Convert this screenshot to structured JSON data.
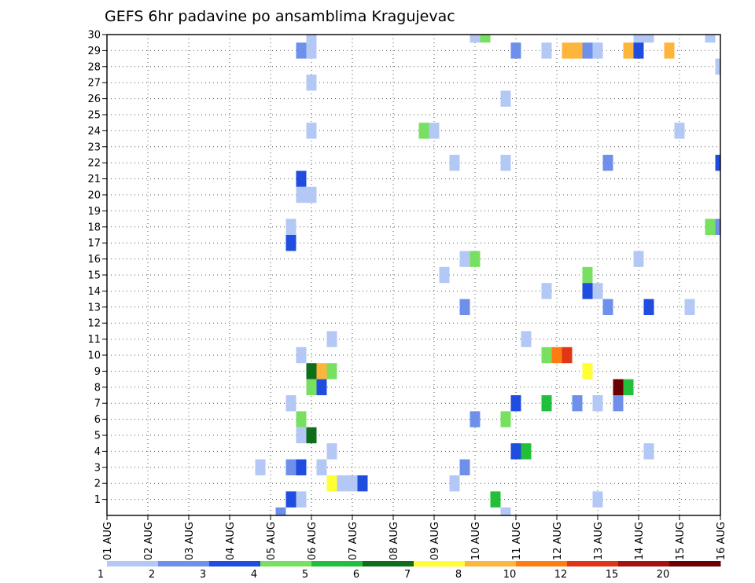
{
  "chart_data": {
    "type": "heatmap",
    "title": "GEFS 6hr padavine po ansamblima Kragujevac",
    "x_tick_labels": [
      "01 AUG",
      "02 AUG",
      "03 AUG",
      "04 AUG",
      "05 AUG",
      "06 AUG",
      "07 AUG",
      "08 AUG",
      "09 AUG",
      "10 AUG",
      "11 AUG",
      "12 AUG",
      "13 AUG",
      "14 AUG",
      "15 AUG",
      "16 AUG"
    ],
    "x_range_days": [
      1,
      16
    ],
    "x_step_days": 0.25,
    "y_range": [
      0,
      30
    ],
    "y_tick_labels": [
      "1",
      "2",
      "3",
      "4",
      "5",
      "6",
      "7",
      "8",
      "9",
      "10",
      "11",
      "12",
      "13",
      "14",
      "15",
      "16",
      "17",
      "18",
      "19",
      "20",
      "21",
      "22",
      "23",
      "24",
      "25",
      "26",
      "27",
      "28",
      "29",
      "30"
    ],
    "grid": true,
    "legend": {
      "placement": "bottom",
      "colors": [
        "#b4c8f5",
        "#6e90ea",
        "#1f4de0",
        "#78e060",
        "#22c03a",
        "#0e6e1a",
        "#ffff33",
        "#ffb43c",
        "#ff7d10",
        "#e03616",
        "#a61010",
        "#6a0000"
      ],
      "labels": [
        "1",
        "2",
        "3",
        "4",
        "5",
        "6",
        "7",
        "8",
        "10",
        "12",
        "15",
        "20"
      ]
    },
    "cells": [
      {
        "day": 6.0,
        "member": 30,
        "level": 1
      },
      {
        "day": 10.0,
        "member": 30,
        "level": 1
      },
      {
        "day": 10.25,
        "member": 30,
        "level": 4
      },
      {
        "day": 14.0,
        "member": 30,
        "level": 1
      },
      {
        "day": 14.25,
        "member": 30,
        "level": 1
      },
      {
        "day": 15.75,
        "member": 30,
        "level": 1
      },
      {
        "day": 5.75,
        "member": 29,
        "level": 2
      },
      {
        "day": 6.0,
        "member": 29,
        "level": 1
      },
      {
        "day": 11.0,
        "member": 29,
        "level": 2
      },
      {
        "day": 11.75,
        "member": 29,
        "level": 1
      },
      {
        "day": 12.25,
        "member": 29,
        "level": 8
      },
      {
        "day": 12.5,
        "member": 29,
        "level": 8
      },
      {
        "day": 12.75,
        "member": 29,
        "level": 2
      },
      {
        "day": 13.0,
        "member": 29,
        "level": 1
      },
      {
        "day": 13.75,
        "member": 29,
        "level": 8
      },
      {
        "day": 14.0,
        "member": 29,
        "level": 3
      },
      {
        "day": 14.75,
        "member": 29,
        "level": 8
      },
      {
        "day": 16.0,
        "member": 28,
        "level": 1
      },
      {
        "day": 6.0,
        "member": 27,
        "level": 1
      },
      {
        "day": 10.75,
        "member": 26,
        "level": 1
      },
      {
        "day": 6.0,
        "member": 24,
        "level": 1
      },
      {
        "day": 8.75,
        "member": 24,
        "level": 4
      },
      {
        "day": 9.0,
        "member": 24,
        "level": 1
      },
      {
        "day": 15.0,
        "member": 24,
        "level": 1
      },
      {
        "day": 9.5,
        "member": 22,
        "level": 1
      },
      {
        "day": 10.75,
        "member": 22,
        "level": 1
      },
      {
        "day": 13.25,
        "member": 22,
        "level": 2
      },
      {
        "day": 16.0,
        "member": 22,
        "level": 3
      },
      {
        "day": 5.75,
        "member": 21,
        "level": 3
      },
      {
        "day": 5.75,
        "member": 20,
        "level": 1
      },
      {
        "day": 6.0,
        "member": 20,
        "level": 1
      },
      {
        "day": 5.5,
        "member": 18,
        "level": 1
      },
      {
        "day": 15.75,
        "member": 18,
        "level": 4
      },
      {
        "day": 16.0,
        "member": 18,
        "level": 2
      },
      {
        "day": 5.5,
        "member": 17,
        "level": 3
      },
      {
        "day": 9.75,
        "member": 16,
        "level": 1
      },
      {
        "day": 10.0,
        "member": 16,
        "level": 4
      },
      {
        "day": 14.0,
        "member": 16,
        "level": 1
      },
      {
        "day": 9.25,
        "member": 15,
        "level": 1
      },
      {
        "day": 12.75,
        "member": 15,
        "level": 4
      },
      {
        "day": 11.75,
        "member": 14,
        "level": 1
      },
      {
        "day": 12.75,
        "member": 14,
        "level": 3
      },
      {
        "day": 13.0,
        "member": 14,
        "level": 1
      },
      {
        "day": 9.75,
        "member": 13,
        "level": 2
      },
      {
        "day": 13.25,
        "member": 13,
        "level": 2
      },
      {
        "day": 14.25,
        "member": 13,
        "level": 3
      },
      {
        "day": 15.25,
        "member": 13,
        "level": 1
      },
      {
        "day": 6.5,
        "member": 11,
        "level": 1
      },
      {
        "day": 11.25,
        "member": 11,
        "level": 1
      },
      {
        "day": 5.75,
        "member": 10,
        "level": 1
      },
      {
        "day": 11.75,
        "member": 10,
        "level": 4
      },
      {
        "day": 12.0,
        "member": 10,
        "level": 9
      },
      {
        "day": 12.25,
        "member": 10,
        "level": 10
      },
      {
        "day": 6.0,
        "member": 9,
        "level": 6
      },
      {
        "day": 6.25,
        "member": 9,
        "level": 8
      },
      {
        "day": 6.5,
        "member": 9,
        "level": 4
      },
      {
        "day": 12.75,
        "member": 9,
        "level": 7
      },
      {
        "day": 6.0,
        "member": 8,
        "level": 4
      },
      {
        "day": 6.25,
        "member": 8,
        "level": 3
      },
      {
        "day": 13.5,
        "member": 8,
        "level": 12
      },
      {
        "day": 13.75,
        "member": 8,
        "level": 5
      },
      {
        "day": 5.5,
        "member": 7,
        "level": 1
      },
      {
        "day": 11.0,
        "member": 7,
        "level": 3
      },
      {
        "day": 11.75,
        "member": 7,
        "level": 5
      },
      {
        "day": 12.5,
        "member": 7,
        "level": 2
      },
      {
        "day": 13.0,
        "member": 7,
        "level": 1
      },
      {
        "day": 13.5,
        "member": 7,
        "level": 2
      },
      {
        "day": 5.75,
        "member": 6,
        "level": 4
      },
      {
        "day": 10.0,
        "member": 6,
        "level": 2
      },
      {
        "day": 10.75,
        "member": 6,
        "level": 4
      },
      {
        "day": 5.75,
        "member": 5,
        "level": 1
      },
      {
        "day": 6.0,
        "member": 5,
        "level": 6
      },
      {
        "day": 6.5,
        "member": 4,
        "level": 1
      },
      {
        "day": 11.0,
        "member": 4,
        "level": 3
      },
      {
        "day": 11.25,
        "member": 4,
        "level": 5
      },
      {
        "day": 14.25,
        "member": 4,
        "level": 1
      },
      {
        "day": 4.75,
        "member": 3,
        "level": 1
      },
      {
        "day": 5.5,
        "member": 3,
        "level": 2
      },
      {
        "day": 5.75,
        "member": 3,
        "level": 3
      },
      {
        "day": 6.25,
        "member": 3,
        "level": 1
      },
      {
        "day": 9.75,
        "member": 3,
        "level": 2
      },
      {
        "day": 6.5,
        "member": 2,
        "level": 7
      },
      {
        "day": 6.75,
        "member": 2,
        "level": 1
      },
      {
        "day": 7.0,
        "member": 2,
        "level": 1
      },
      {
        "day": 7.25,
        "member": 2,
        "level": 3
      },
      {
        "day": 9.5,
        "member": 2,
        "level": 1
      },
      {
        "day": 5.5,
        "member": 1,
        "level": 3
      },
      {
        "day": 5.75,
        "member": 1,
        "level": 1
      },
      {
        "day": 10.5,
        "member": 1,
        "level": 5
      },
      {
        "day": 13.0,
        "member": 1,
        "level": 1
      },
      {
        "day": 5.25,
        "member": 0,
        "level": 2
      },
      {
        "day": 10.75,
        "member": 0,
        "level": 1
      }
    ]
  }
}
